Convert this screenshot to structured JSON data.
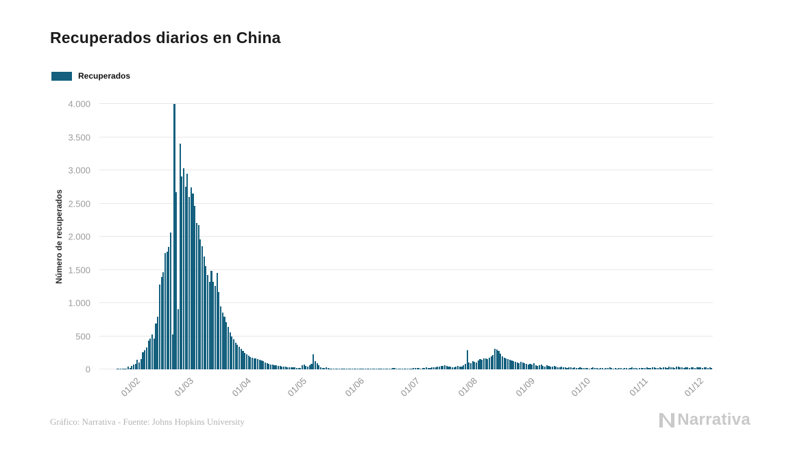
{
  "page": {
    "title": "Recuperados diarios en China",
    "footer_credit": "Gráfico: Narrativa - Fuente: Johns Hopkins University",
    "brand": "Narrativa"
  },
  "legend": {
    "label": "Recuperados",
    "color": "#14607e"
  },
  "chart_data": {
    "type": "bar",
    "title": "Recuperados diarios en China",
    "xlabel": "",
    "ylabel": "Número de recuperados",
    "series_name": "Recuperados",
    "bar_color": "#14607e",
    "grid": "horizontal",
    "legend_position": "top-left",
    "ylim": [
      0,
      4000
    ],
    "yticks": [
      {
        "value": 0,
        "label": "0"
      },
      {
        "value": 500,
        "label": "500"
      },
      {
        "value": 1000,
        "label": "1.000"
      },
      {
        "value": 1500,
        "label": "1.500"
      },
      {
        "value": 2000,
        "label": "2.000"
      },
      {
        "value": 2500,
        "label": "2.500"
      },
      {
        "value": 3000,
        "label": "3.000"
      },
      {
        "value": 3500,
        "label": "3.500"
      },
      {
        "value": 4000,
        "label": "4.000"
      }
    ],
    "x_unit": "day",
    "x_start_date": "2020-01-13",
    "x_end_date": "2020-12-08",
    "xticks": [
      {
        "label": "01/02",
        "dayIndex": 19
      },
      {
        "label": "01/03",
        "dayIndex": 48
      },
      {
        "label": "01/04",
        "dayIndex": 79
      },
      {
        "label": "01/05",
        "dayIndex": 109
      },
      {
        "label": "01/06",
        "dayIndex": 140
      },
      {
        "label": "01/07",
        "dayIndex": 170
      },
      {
        "label": "01/08",
        "dayIndex": 201
      },
      {
        "label": "01/09",
        "dayIndex": 232
      },
      {
        "label": "01/10",
        "dayIndex": 262
      },
      {
        "label": "01/11",
        "dayIndex": 293
      },
      {
        "label": "01/12",
        "dayIndex": 323
      }
    ],
    "values": [
      0,
      0,
      0,
      0,
      0,
      0,
      0,
      0,
      0,
      3,
      2,
      5,
      8,
      10,
      9,
      43,
      21,
      47,
      72,
      85,
      147,
      106,
      153,
      257,
      290,
      327,
      429,
      461,
      526,
      459,
      690,
      789,
      1283,
      1389,
      1461,
      1752,
      1771,
      1844,
      2066,
      521,
      4000,
      2672,
      903,
      3400,
      2912,
      3028,
      2750,
      2950,
      2600,
      2742,
      2652,
      2463,
      2206,
      2171,
      1956,
      1860,
      1700,
      1560,
      1420,
      1320,
      1480,
      1320,
      1260,
      1450,
      1170,
      950,
      860,
      790,
      710,
      640,
      560,
      490,
      450,
      400,
      370,
      340,
      310,
      280,
      250,
      230,
      210,
      190,
      180,
      170,
      160,
      150,
      140,
      130,
      120,
      100,
      90,
      80,
      75,
      70,
      65,
      60,
      55,
      50,
      45,
      40,
      40,
      35,
      30,
      30,
      28,
      26,
      24,
      22,
      20,
      60,
      70,
      50,
      45,
      60,
      80,
      230,
      120,
      90,
      60,
      30,
      25,
      20,
      35,
      20,
      15,
      12,
      10,
      15,
      10,
      8,
      10,
      12,
      8,
      10,
      6,
      8,
      5,
      6,
      8,
      5,
      5,
      8,
      6,
      10,
      8,
      6,
      5,
      10,
      12,
      8,
      6,
      10,
      15,
      12,
      10,
      8,
      12,
      15,
      20,
      18,
      15,
      12,
      10,
      15,
      12,
      10,
      8,
      12,
      15,
      18,
      20,
      25,
      20,
      15,
      20,
      25,
      30,
      25,
      20,
      30,
      35,
      30,
      40,
      45,
      50,
      55,
      60,
      50,
      40,
      45,
      35,
      30,
      40,
      50,
      45,
      40,
      60,
      80,
      290,
      100,
      90,
      120,
      110,
      100,
      130,
      150,
      140,
      160,
      170,
      150,
      180,
      200,
      220,
      310,
      300,
      280,
      240,
      200,
      180,
      160,
      150,
      140,
      130,
      120,
      110,
      100,
      90,
      110,
      100,
      90,
      80,
      70,
      80,
      70,
      90,
      60,
      50,
      60,
      70,
      55,
      45,
      60,
      50,
      40,
      45,
      55,
      40,
      35,
      30,
      40,
      35,
      30,
      25,
      30,
      35,
      25,
      30,
      20,
      25,
      30,
      20,
      25,
      20,
      25,
      15,
      20,
      30,
      25,
      20,
      15,
      25,
      20,
      15,
      20,
      25,
      30,
      20,
      15,
      20,
      15,
      25,
      20,
      15,
      20,
      25,
      15,
      20,
      30,
      25,
      20,
      15,
      20,
      25,
      20,
      25,
      30,
      20,
      25,
      35,
      30,
      25,
      20,
      30,
      25,
      35,
      30,
      25,
      40,
      35,
      30,
      25,
      45,
      40,
      35,
      30,
      25,
      35,
      30,
      25,
      30,
      35,
      25,
      30,
      35,
      30,
      25,
      30,
      35,
      25,
      30,
      25
    ]
  }
}
